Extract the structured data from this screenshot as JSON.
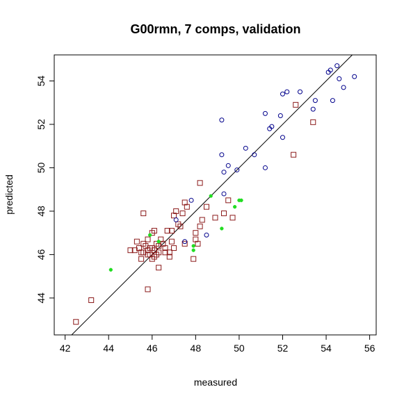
{
  "chart_data": {
    "type": "scatter",
    "title": "G00rmn, 7 comps, validation",
    "xlabel": "measured",
    "ylabel": "predicted",
    "xlim": [
      41.5,
      56.3
    ],
    "ylim": [
      42.3,
      55.2
    ],
    "x_ticks": [
      42,
      44,
      46,
      48,
      50,
      52,
      54,
      56
    ],
    "y_ticks": [
      44,
      46,
      48,
      50,
      52,
      54
    ],
    "grid": false,
    "legend": "none",
    "reference_line": {
      "type": "identity",
      "color": "#000000"
    },
    "series": [
      {
        "marker": "open-square",
        "color": "#8B1A1A",
        "points": [
          [
            42.5,
            42.9
          ],
          [
            43.2,
            43.9
          ],
          [
            45.0,
            46.2
          ],
          [
            45.2,
            46.2
          ],
          [
            45.3,
            46.6
          ],
          [
            45.4,
            46.3
          ],
          [
            45.5,
            45.8
          ],
          [
            45.6,
            46.5
          ],
          [
            45.6,
            46.1
          ],
          [
            45.7,
            46.4
          ],
          [
            45.8,
            46.0
          ],
          [
            45.9,
            46.3
          ],
          [
            45.9,
            46.0
          ],
          [
            45.8,
            46.7
          ],
          [
            45.6,
            47.9
          ],
          [
            46.0,
            47.0
          ],
          [
            46.1,
            47.1
          ],
          [
            46.1,
            46.2
          ],
          [
            46.0,
            45.8
          ],
          [
            46.2,
            46.0
          ],
          [
            46.3,
            46.4
          ],
          [
            46.4,
            46.7
          ],
          [
            46.3,
            46.1
          ],
          [
            46.5,
            46.5
          ],
          [
            46.6,
            46.3
          ],
          [
            46.7,
            47.1
          ],
          [
            46.8,
            46.1
          ],
          [
            46.8,
            45.9
          ],
          [
            46.9,
            47.1
          ],
          [
            46.9,
            46.6
          ],
          [
            47.0,
            46.3
          ],
          [
            47.1,
            48.0
          ],
          [
            47.2,
            47.4
          ],
          [
            47.3,
            47.3
          ],
          [
            47.4,
            47.9
          ],
          [
            47.5,
            48.4
          ],
          [
            47.6,
            48.2
          ],
          [
            47.9,
            45.8
          ],
          [
            48.0,
            46.7
          ],
          [
            48.0,
            47.0
          ],
          [
            48.2,
            47.3
          ],
          [
            48.3,
            47.6
          ],
          [
            48.5,
            48.2
          ],
          [
            48.9,
            47.7
          ],
          [
            49.3,
            47.9
          ],
          [
            49.5,
            48.5
          ],
          [
            49.7,
            47.7
          ],
          [
            48.2,
            49.3
          ],
          [
            45.8,
            44.4
          ],
          [
            46.3,
            45.4
          ],
          [
            45.8,
            46.2
          ],
          [
            46.0,
            46.3
          ],
          [
            46.2,
            46.5
          ],
          [
            47.0,
            47.8
          ],
          [
            48.1,
            46.5
          ],
          [
            47.5,
            46.5
          ],
          [
            52.5,
            50.6
          ],
          [
            52.6,
            52.9
          ],
          [
            53.4,
            52.1
          ],
          [
            46.6,
            46.1
          ],
          [
            45.5,
            46.1
          ],
          [
            46.1,
            45.9
          ]
        ]
      },
      {
        "marker": "open-circle",
        "color": "#00008B",
        "points": [
          [
            47.1,
            47.6
          ],
          [
            47.5,
            46.6
          ],
          [
            47.8,
            48.5
          ],
          [
            48.5,
            46.9
          ],
          [
            49.2,
            52.2
          ],
          [
            49.2,
            50.6
          ],
          [
            49.3,
            49.8
          ],
          [
            49.3,
            48.8
          ],
          [
            49.5,
            50.1
          ],
          [
            49.9,
            49.9
          ],
          [
            50.3,
            50.9
          ],
          [
            50.7,
            50.6
          ],
          [
            51.2,
            52.5
          ],
          [
            51.2,
            50.0
          ],
          [
            51.4,
            51.8
          ],
          [
            51.5,
            51.9
          ],
          [
            51.9,
            52.4
          ],
          [
            52.0,
            53.4
          ],
          [
            52.0,
            51.4
          ],
          [
            52.2,
            53.5
          ],
          [
            52.8,
            53.5
          ],
          [
            53.4,
            52.7
          ],
          [
            53.5,
            53.1
          ],
          [
            54.1,
            54.4
          ],
          [
            54.2,
            54.5
          ],
          [
            54.3,
            53.1
          ],
          [
            54.5,
            54.7
          ],
          [
            54.6,
            54.1
          ],
          [
            54.8,
            53.7
          ],
          [
            55.3,
            54.2
          ]
        ]
      },
      {
        "marker": "filled-circle",
        "color": "#22DD22",
        "points": [
          [
            44.1,
            45.3
          ],
          [
            45.9,
            46.9
          ],
          [
            46.3,
            46.6
          ],
          [
            47.9,
            46.4
          ],
          [
            47.9,
            46.2
          ],
          [
            48.7,
            48.7
          ],
          [
            49.2,
            47.2
          ],
          [
            49.8,
            48.2
          ],
          [
            50.0,
            48.5
          ],
          [
            50.1,
            48.5
          ]
        ]
      }
    ]
  }
}
